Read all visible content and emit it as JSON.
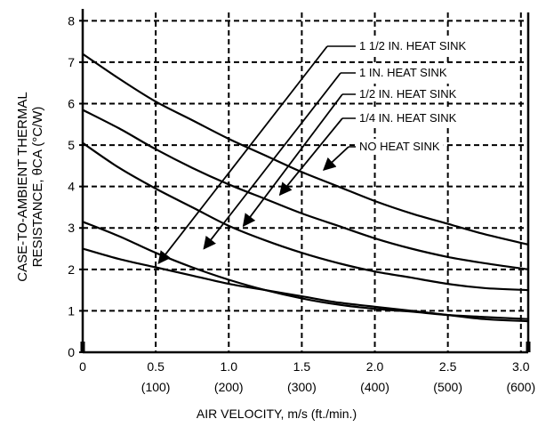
{
  "chart_data": {
    "type": "line",
    "title": "",
    "xlabel": "AIR VELOCITY, m/s (ft./min.)",
    "ylabel_line1": "CASE-TO-AMBIENT THERMAL",
    "ylabel_line2": "RESISTANCE, θCA (°C/W)",
    "xlim": [
      0,
      3.05
    ],
    "ylim": [
      0,
      8.2
    ],
    "grid": true,
    "grid_style": "dashed",
    "x_ticks": [
      {
        "value": 0,
        "label": "0",
        "sub": ""
      },
      {
        "value": 0.5,
        "label": "0.5",
        "sub": "(100)"
      },
      {
        "value": 1.0,
        "label": "1.0",
        "sub": "(200)"
      },
      {
        "value": 1.5,
        "label": "1.5",
        "sub": "(300)"
      },
      {
        "value": 2.0,
        "label": "2.0",
        "sub": "(400)"
      },
      {
        "value": 2.5,
        "label": "2.5",
        "sub": "(500)"
      },
      {
        "value": 3.0,
        "label": "3.0",
        "sub": "(600)"
      }
    ],
    "y_ticks": [
      0,
      1,
      2,
      3,
      4,
      5,
      6,
      7,
      8
    ],
    "series": [
      {
        "name": "NO HEAT SINK",
        "x": [
          0,
          0.25,
          0.5,
          0.75,
          1.0,
          1.25,
          1.5,
          1.75,
          2.0,
          2.25,
          2.5,
          2.75,
          3.05
        ],
        "y": [
          7.2,
          6.6,
          6.05,
          5.6,
          5.15,
          4.75,
          4.35,
          4.0,
          3.65,
          3.35,
          3.1,
          2.85,
          2.6
        ]
      },
      {
        "name": "1/4 IN. HEAT SINK",
        "x": [
          0,
          0.25,
          0.5,
          0.75,
          1.0,
          1.25,
          1.5,
          1.75,
          2.0,
          2.25,
          2.5,
          2.75,
          3.05
        ],
        "y": [
          5.85,
          5.4,
          4.9,
          4.45,
          4.05,
          3.7,
          3.35,
          3.05,
          2.75,
          2.5,
          2.3,
          2.15,
          2.0
        ]
      },
      {
        "name": "1/2 IN. HEAT SINK",
        "x": [
          0,
          0.25,
          0.5,
          0.75,
          1.0,
          1.25,
          1.5,
          1.75,
          2.0,
          2.25,
          2.5,
          2.75,
          3.05
        ],
        "y": [
          5.05,
          4.45,
          3.95,
          3.5,
          3.05,
          2.7,
          2.4,
          2.15,
          1.95,
          1.8,
          1.65,
          1.55,
          1.5
        ]
      },
      {
        "name": "1 IN. HEAT SINK",
        "x": [
          0,
          0.25,
          0.5,
          0.75,
          1.0,
          1.25,
          1.5,
          1.75,
          2.0,
          2.25,
          2.5,
          2.75,
          3.05
        ],
        "y": [
          3.15,
          2.8,
          2.4,
          2.05,
          1.75,
          1.5,
          1.3,
          1.15,
          1.05,
          0.98,
          0.9,
          0.85,
          0.8
        ]
      },
      {
        "name": "1 1/2 IN. HEAT SINK",
        "x": [
          0,
          0.25,
          0.5,
          0.75,
          1.0,
          1.25,
          1.5,
          1.75,
          2.0,
          2.25,
          2.5,
          2.75,
          3.05
        ],
        "y": [
          2.5,
          2.25,
          2.05,
          1.85,
          1.65,
          1.5,
          1.35,
          1.2,
          1.1,
          1.0,
          0.9,
          0.8,
          0.75
        ]
      }
    ],
    "annotations": [
      {
        "text": "1 1/2 IN. HEAT SINK",
        "series": "1 1/2 IN. HEAT SINK",
        "arrow_to": [
          0.52,
          2.15
        ]
      },
      {
        "text": "1 IN. HEAT SINK",
        "series": "1 IN. HEAT SINK",
        "arrow_to": [
          0.83,
          2.5
        ]
      },
      {
        "text": "1/2 IN. HEAT SINK",
        "series": "1/2 IN. HEAT SINK",
        "arrow_to": [
          1.1,
          3.05
        ]
      },
      {
        "text": "1/4 IN. HEAT SINK",
        "series": "1/4 IN. HEAT SINK",
        "arrow_to": [
          1.35,
          3.8
        ]
      },
      {
        "text": "NO HEAT SINK",
        "series": "NO HEAT SINK",
        "arrow_to": [
          1.65,
          4.4
        ]
      }
    ]
  }
}
